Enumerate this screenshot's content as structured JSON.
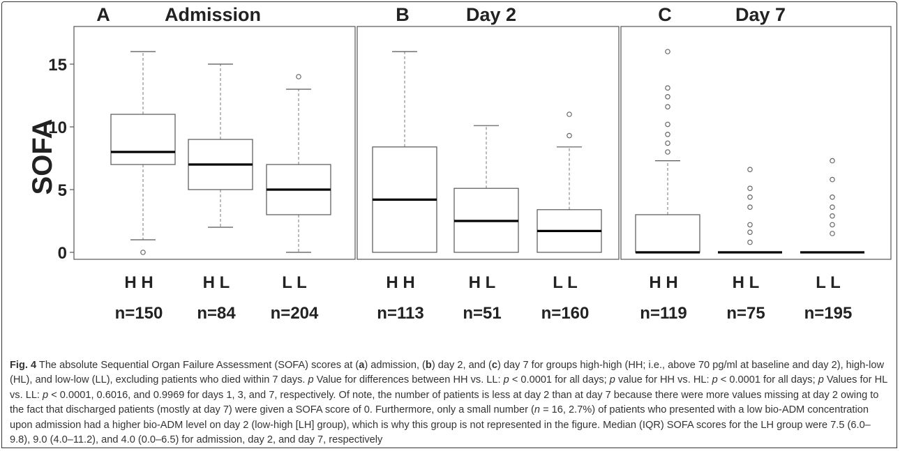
{
  "chart_data": [
    {
      "type": "box",
      "panel_letter": "A",
      "title": "Admission",
      "ylabel": "SOFA",
      "yticks": [
        0,
        5,
        10,
        15
      ],
      "ylim": [
        0,
        16.5
      ],
      "groups": [
        {
          "label": "H H",
          "n_label": "n=150",
          "n": 150,
          "whisker_low": 1,
          "q1": 7,
          "median": 8,
          "q3": 11,
          "whisker_high": 16,
          "outliers": [
            0
          ]
        },
        {
          "label": "H L",
          "n_label": "n=84",
          "n": 84,
          "whisker_low": 2,
          "q1": 5,
          "median": 7,
          "q3": 9,
          "whisker_high": 15,
          "outliers": []
        },
        {
          "label": "L L",
          "n_label": "n=204",
          "n": 204,
          "whisker_low": 0,
          "q1": 3,
          "median": 5,
          "q3": 7,
          "whisker_high": 13,
          "outliers": [
            14
          ]
        }
      ]
    },
    {
      "type": "box",
      "panel_letter": "B",
      "title": "Day 2",
      "groups": [
        {
          "label": "H H",
          "n_label": "n=113",
          "n": 113,
          "whisker_low": 0,
          "q1": 0,
          "median": 4.2,
          "q3": 8.4,
          "whisker_high": 16,
          "outliers": []
        },
        {
          "label": "H L",
          "n_label": "n=51",
          "n": 51,
          "whisker_low": 0,
          "q1": 0,
          "median": 2.5,
          "q3": 5.1,
          "whisker_high": 10.1,
          "outliers": []
        },
        {
          "label": "L L",
          "n_label": "n=160",
          "n": 160,
          "whisker_low": 0,
          "q1": 0,
          "median": 1.7,
          "q3": 3.4,
          "whisker_high": 8.4,
          "outliers": [
            9.3,
            11
          ]
        }
      ]
    },
    {
      "type": "box",
      "panel_letter": "C",
      "title": "Day 7",
      "groups": [
        {
          "label": "H H",
          "n_label": "n=119",
          "n": 119,
          "whisker_low": 0,
          "q1": 0,
          "median": 0,
          "q3": 3,
          "whisker_high": 7.3,
          "outliers": [
            8,
            8.7,
            9.4,
            10.2,
            11.6,
            12.4,
            13.1,
            16
          ]
        },
        {
          "label": "H L",
          "n_label": "n=75",
          "n": 75,
          "whisker_low": 0,
          "q1": 0,
          "median": 0,
          "q3": 0,
          "whisker_high": 0,
          "outliers": [
            0.8,
            1.6,
            2.2,
            3.6,
            4.4,
            5.1,
            6.6
          ]
        },
        {
          "label": "L L",
          "n_label": "n=195",
          "n": 195,
          "whisker_low": 0,
          "q1": 0,
          "median": 0,
          "q3": 0,
          "whisker_high": 0,
          "outliers": [
            1.5,
            2.2,
            2.9,
            3.6,
            4.4,
            5.8,
            7.3
          ]
        }
      ]
    }
  ],
  "caption": {
    "label": "Fig. 4",
    "parts": [
      {
        "t": " The absolute Sequential Organ Failure Assessment (SOFA) scores at ("
      },
      {
        "t": "a",
        "b": true
      },
      {
        "t": ") admission, ("
      },
      {
        "t": "b",
        "b": true
      },
      {
        "t": ") day 2, and ("
      },
      {
        "t": "c",
        "b": true
      },
      {
        "t": ") day 7 for groups high-high (HH; i.e., above 70 pg/ml at baseline and day 2), high-low (HL), and low-low (LL), excluding patients who died within 7 days. "
      },
      {
        "t": "p",
        "i": true
      },
      {
        "t": " Value for differences between HH vs. LL: "
      },
      {
        "t": "p",
        "i": true
      },
      {
        "t": " < 0.0001 for all days; "
      },
      {
        "t": "p",
        "i": true
      },
      {
        "t": " value for HH vs. HL: "
      },
      {
        "t": "p",
        "i": true
      },
      {
        "t": " < 0.0001 for all days; "
      },
      {
        "t": "p",
        "i": true
      },
      {
        "t": " Values for HL vs. LL: "
      },
      {
        "t": "p",
        "i": true
      },
      {
        "t": " < 0.0001, 0.6016, and 0.9969 for days 1, 3, and 7, respectively. Of note, the number of patients is less at day 2 than at day 7 because there were more values missing at day 2 owing to the fact that discharged patients (mostly at day 7) were given a SOFA score of 0. Furthermore, only a small number ("
      },
      {
        "t": "n",
        "i": true
      },
      {
        "t": " = 16, 2.7%) of patients who presented with a low bio-ADM concentration upon admission had a higher bio-ADM level on day 2 (low-high [LH] group), which is why this group is not represented in the figure. Median (IQR) SOFA scores for the LH group were 7.5 (6.0–9.8), 9.0 (4.0–11.2), and 4.0 (0.0–6.5) for admission, day 2, and day 7, respectively"
      }
    ]
  },
  "colors": {
    "box_stroke": "#555555",
    "median": "#000000",
    "text": "#222222",
    "caption_text": "#333333"
  }
}
